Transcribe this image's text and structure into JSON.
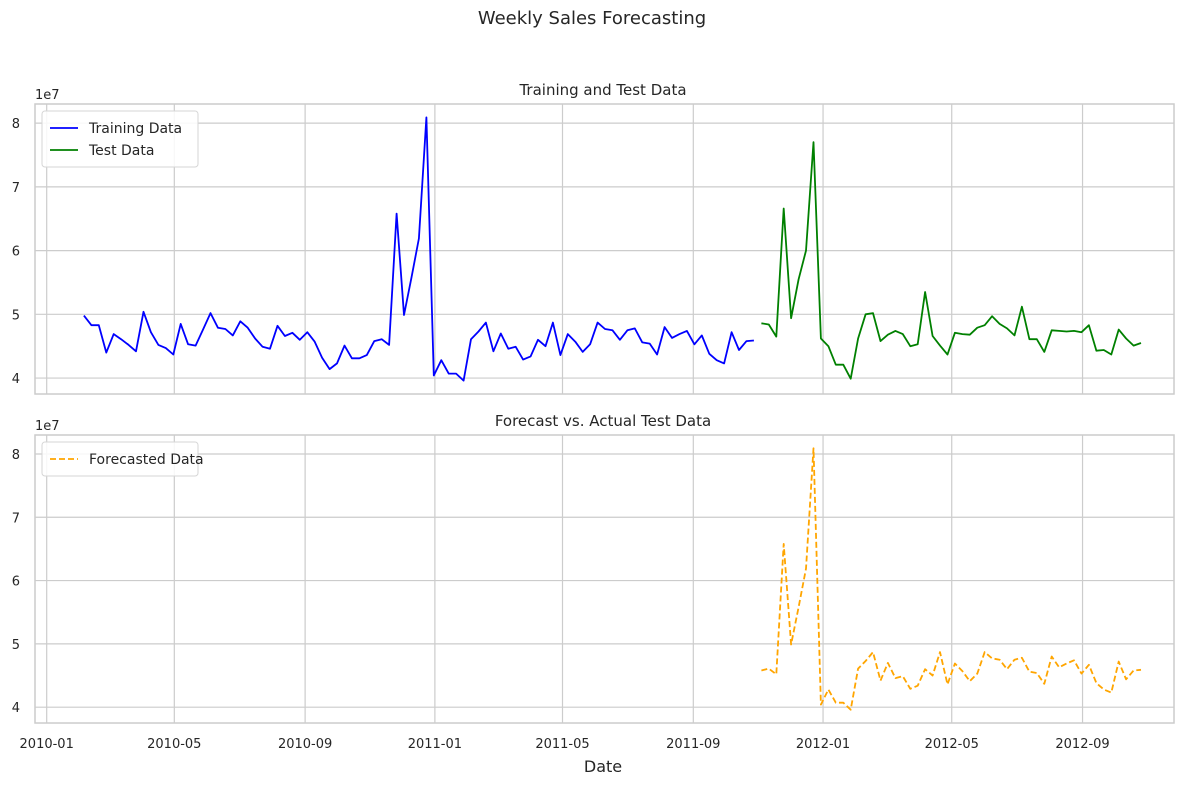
{
  "figure": {
    "suptitle": "Weekly Sales Forecasting",
    "xlabel": "Date",
    "offset_label": "1e7"
  },
  "chart_data": [
    {
      "type": "line",
      "title": "Training and Test Data",
      "xlabel": "",
      "ylabel": "",
      "x_unit": "date",
      "xlim": [
        "2009-12-21",
        "2012-11-26"
      ],
      "ylim": [
        3.75,
        8.3
      ],
      "y_scale": "1e7",
      "xticks": [
        "2010-01",
        "2010-05",
        "2010-09",
        "2011-01",
        "2011-05",
        "2011-09",
        "2012-01",
        "2012-05",
        "2012-09"
      ],
      "yticks": [
        "4",
        "5",
        "6",
        "7",
        "8"
      ],
      "grid": true,
      "legend": "upper-left",
      "series": [
        {
          "name": "Training Data",
          "color": "#0000ff",
          "dash": "solid",
          "points": [
            [
              "2010-02-05",
              4.98
            ],
            [
              "2010-02-12",
              4.83
            ],
            [
              "2010-02-19",
              4.83
            ],
            [
              "2010-02-26",
              4.4
            ],
            [
              "2010-03-05",
              4.69
            ],
            [
              "2010-03-12",
              4.61
            ],
            [
              "2010-03-19",
              4.52
            ],
            [
              "2010-03-26",
              4.42
            ],
            [
              "2010-04-02",
              5.04
            ],
            [
              "2010-04-09",
              4.72
            ],
            [
              "2010-04-16",
              4.52
            ],
            [
              "2010-04-23",
              4.47
            ],
            [
              "2010-04-30",
              4.37
            ],
            [
              "2010-05-07",
              4.85
            ],
            [
              "2010-05-14",
              4.53
            ],
            [
              "2010-05-21",
              4.51
            ],
            [
              "2010-05-28",
              4.76
            ],
            [
              "2010-06-04",
              5.02
            ],
            [
              "2010-06-11",
              4.79
            ],
            [
              "2010-06-18",
              4.77
            ],
            [
              "2010-06-25",
              4.67
            ],
            [
              "2010-07-02",
              4.89
            ],
            [
              "2010-07-09",
              4.79
            ],
            [
              "2010-07-16",
              4.62
            ],
            [
              "2010-07-23",
              4.49
            ],
            [
              "2010-07-30",
              4.46
            ],
            [
              "2010-08-06",
              4.82
            ],
            [
              "2010-08-13",
              4.66
            ],
            [
              "2010-08-20",
              4.71
            ],
            [
              "2010-08-27",
              4.6
            ],
            [
              "2010-09-03",
              4.72
            ],
            [
              "2010-09-10",
              4.57
            ],
            [
              "2010-09-17",
              4.32
            ],
            [
              "2010-09-24",
              4.14
            ],
            [
              "2010-10-01",
              4.23
            ],
            [
              "2010-10-08",
              4.51
            ],
            [
              "2010-10-15",
              4.31
            ],
            [
              "2010-10-22",
              4.31
            ],
            [
              "2010-10-29",
              4.36
            ],
            [
              "2010-11-05",
              4.58
            ],
            [
              "2010-11-12",
              4.61
            ],
            [
              "2010-11-19",
              4.52
            ],
            [
              "2010-11-26",
              6.58
            ],
            [
              "2010-12-03",
              4.99
            ],
            [
              "2010-12-10",
              5.58
            ],
            [
              "2010-12-17",
              6.19
            ],
            [
              "2010-12-24",
              8.09
            ],
            [
              "2010-12-31",
              4.04
            ],
            [
              "2011-01-07",
              4.28
            ],
            [
              "2011-01-14",
              4.07
            ],
            [
              "2011-01-21",
              4.07
            ],
            [
              "2011-01-28",
              3.96
            ],
            [
              "2011-02-04",
              4.61
            ],
            [
              "2011-02-11",
              4.73
            ],
            [
              "2011-02-18",
              4.87
            ],
            [
              "2011-02-25",
              4.42
            ],
            [
              "2011-03-04",
              4.7
            ],
            [
              "2011-03-11",
              4.46
            ],
            [
              "2011-03-18",
              4.49
            ],
            [
              "2011-03-25",
              4.29
            ],
            [
              "2011-04-01",
              4.34
            ],
            [
              "2011-04-08",
              4.6
            ],
            [
              "2011-04-15",
              4.5
            ],
            [
              "2011-04-22",
              4.87
            ],
            [
              "2011-04-29",
              4.36
            ],
            [
              "2011-05-06",
              4.69
            ],
            [
              "2011-05-13",
              4.57
            ],
            [
              "2011-05-20",
              4.41
            ],
            [
              "2011-05-27",
              4.53
            ],
            [
              "2011-06-03",
              4.87
            ],
            [
              "2011-06-10",
              4.77
            ],
            [
              "2011-06-17",
              4.75
            ],
            [
              "2011-06-24",
              4.6
            ],
            [
              "2011-07-01",
              4.75
            ],
            [
              "2011-07-08",
              4.78
            ],
            [
              "2011-07-15",
              4.56
            ],
            [
              "2011-07-22",
              4.54
            ],
            [
              "2011-07-29",
              4.37
            ],
            [
              "2011-08-05",
              4.8
            ],
            [
              "2011-08-12",
              4.63
            ],
            [
              "2011-08-19",
              4.69
            ],
            [
              "2011-08-26",
              4.74
            ],
            [
              "2011-09-02",
              4.53
            ],
            [
              "2011-09-09",
              4.67
            ],
            [
              "2011-09-16",
              4.38
            ],
            [
              "2011-09-23",
              4.28
            ],
            [
              "2011-09-30",
              4.23
            ],
            [
              "2011-10-07",
              4.72
            ],
            [
              "2011-10-14",
              4.44
            ],
            [
              "2011-10-21",
              4.58
            ],
            [
              "2011-10-28",
              4.59
            ]
          ]
        },
        {
          "name": "Test Data",
          "color": "#008000",
          "dash": "solid",
          "points": [
            [
              "2011-11-04",
              4.86
            ],
            [
              "2011-11-11",
              4.84
            ],
            [
              "2011-11-18",
              4.65
            ],
            [
              "2011-11-25",
              6.66
            ],
            [
              "2011-12-02",
              4.94
            ],
            [
              "2011-12-09",
              5.55
            ],
            [
              "2011-12-16",
              6.0
            ],
            [
              "2011-12-23",
              7.7
            ],
            [
              "2011-12-30",
              4.62
            ],
            [
              "2012-01-06",
              4.5
            ],
            [
              "2012-01-13",
              4.21
            ],
            [
              "2012-01-20",
              4.21
            ],
            [
              "2012-01-27",
              3.99
            ],
            [
              "2012-02-03",
              4.62
            ],
            [
              "2012-02-10",
              5.0
            ],
            [
              "2012-02-17",
              5.02
            ],
            [
              "2012-02-24",
              4.58
            ],
            [
              "2012-03-02",
              4.68
            ],
            [
              "2012-03-09",
              4.74
            ],
            [
              "2012-03-16",
              4.69
            ],
            [
              "2012-03-23",
              4.5
            ],
            [
              "2012-03-30",
              4.53
            ],
            [
              "2012-04-06",
              5.35
            ],
            [
              "2012-04-13",
              4.66
            ],
            [
              "2012-04-20",
              4.51
            ],
            [
              "2012-04-27",
              4.37
            ],
            [
              "2012-05-04",
              4.71
            ],
            [
              "2012-05-11",
              4.69
            ],
            [
              "2012-05-18",
              4.68
            ],
            [
              "2012-05-25",
              4.79
            ],
            [
              "2012-06-01",
              4.83
            ],
            [
              "2012-06-08",
              4.97
            ],
            [
              "2012-06-15",
              4.85
            ],
            [
              "2012-06-22",
              4.78
            ],
            [
              "2012-06-29",
              4.67
            ],
            [
              "2012-07-06",
              5.12
            ],
            [
              "2012-07-13",
              4.61
            ],
            [
              "2012-07-20",
              4.61
            ],
            [
              "2012-07-27",
              4.41
            ],
            [
              "2012-08-03",
              4.75
            ],
            [
              "2012-08-10",
              4.74
            ],
            [
              "2012-08-17",
              4.73
            ],
            [
              "2012-08-24",
              4.74
            ],
            [
              "2012-08-31",
              4.72
            ],
            [
              "2012-09-07",
              4.83
            ],
            [
              "2012-09-14",
              4.43
            ],
            [
              "2012-09-21",
              4.44
            ],
            [
              "2012-09-28",
              4.37
            ],
            [
              "2012-10-05",
              4.76
            ],
            [
              "2012-10-12",
              4.62
            ],
            [
              "2012-10-19",
              4.51
            ],
            [
              "2012-10-26",
              4.55
            ]
          ]
        }
      ]
    },
    {
      "type": "line",
      "title": "Forecast vs. Actual Test Data",
      "xlabel": "Date",
      "ylabel": "",
      "x_unit": "date",
      "xlim": [
        "2009-12-21",
        "2012-11-26"
      ],
      "ylim": [
        3.75,
        8.3
      ],
      "y_scale": "1e7",
      "xticks": [
        "2010-01",
        "2010-05",
        "2010-09",
        "2011-01",
        "2011-05",
        "2011-09",
        "2012-01",
        "2012-05",
        "2012-09"
      ],
      "yticks": [
        "4",
        "5",
        "6",
        "7",
        "8"
      ],
      "grid": true,
      "legend": "upper-left",
      "series": [
        {
          "name": "Forecasted Data",
          "color": "#ffa500",
          "dash": "dashed",
          "points": [
            [
              "2011-11-04",
              4.58
            ],
            [
              "2011-11-11",
              4.61
            ],
            [
              "2011-11-18",
              4.52
            ],
            [
              "2011-11-25",
              6.58
            ],
            [
              "2011-12-02",
              4.99
            ],
            [
              "2011-12-09",
              5.58
            ],
            [
              "2011-12-16",
              6.19
            ],
            [
              "2011-12-23",
              8.09
            ],
            [
              "2011-12-30",
              4.04
            ],
            [
              "2012-01-06",
              4.28
            ],
            [
              "2012-01-13",
              4.07
            ],
            [
              "2012-01-20",
              4.07
            ],
            [
              "2012-01-27",
              3.96
            ],
            [
              "2012-02-03",
              4.61
            ],
            [
              "2012-02-10",
              4.73
            ],
            [
              "2012-02-17",
              4.87
            ],
            [
              "2012-02-24",
              4.42
            ],
            [
              "2012-03-02",
              4.7
            ],
            [
              "2012-03-09",
              4.46
            ],
            [
              "2012-03-16",
              4.49
            ],
            [
              "2012-03-23",
              4.29
            ],
            [
              "2012-03-30",
              4.34
            ],
            [
              "2012-04-06",
              4.6
            ],
            [
              "2012-04-13",
              4.5
            ],
            [
              "2012-04-20",
              4.87
            ],
            [
              "2012-04-27",
              4.36
            ],
            [
              "2012-05-04",
              4.69
            ],
            [
              "2012-05-11",
              4.57
            ],
            [
              "2012-05-18",
              4.41
            ],
            [
              "2012-05-25",
              4.53
            ],
            [
              "2012-06-01",
              4.87
            ],
            [
              "2012-06-08",
              4.77
            ],
            [
              "2012-06-15",
              4.75
            ],
            [
              "2012-06-22",
              4.6
            ],
            [
              "2012-06-29",
              4.75
            ],
            [
              "2012-07-06",
              4.78
            ],
            [
              "2012-07-13",
              4.56
            ],
            [
              "2012-07-20",
              4.54
            ],
            [
              "2012-07-27",
              4.37
            ],
            [
              "2012-08-03",
              4.8
            ],
            [
              "2012-08-10",
              4.63
            ],
            [
              "2012-08-17",
              4.69
            ],
            [
              "2012-08-24",
              4.74
            ],
            [
              "2012-08-31",
              4.53
            ],
            [
              "2012-09-07",
              4.67
            ],
            [
              "2012-09-14",
              4.38
            ],
            [
              "2012-09-21",
              4.28
            ],
            [
              "2012-09-28",
              4.23
            ],
            [
              "2012-10-05",
              4.72
            ],
            [
              "2012-10-12",
              4.44
            ],
            [
              "2012-10-19",
              4.58
            ],
            [
              "2012-10-26",
              4.59
            ]
          ]
        }
      ]
    }
  ]
}
